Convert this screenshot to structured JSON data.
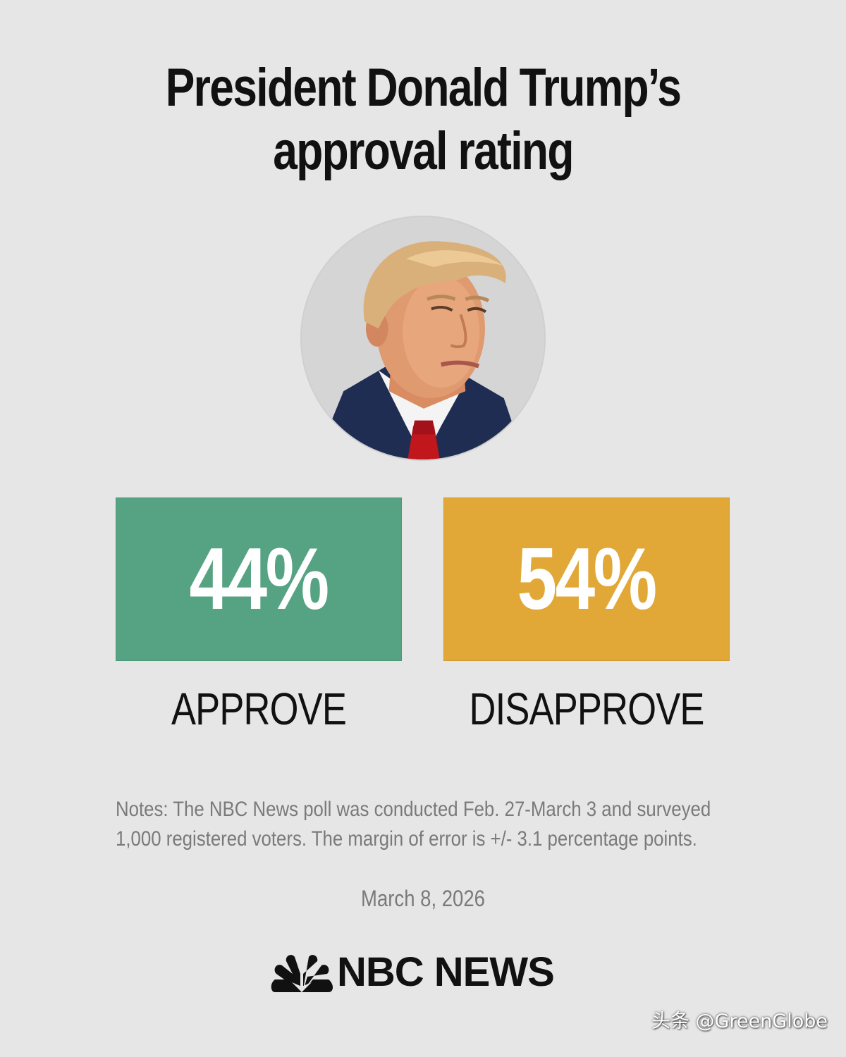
{
  "title": {
    "line1": "President Donald Trump’s",
    "line2": "approval rating"
  },
  "stats": {
    "approve": {
      "value": "44%",
      "label": "APPROVE",
      "color": "#56a383"
    },
    "disapprove": {
      "value": "54%",
      "label": "DISAPPROVE",
      "color": "#e2a837"
    }
  },
  "notes": {
    "line1": "Notes: The NBC News poll was conducted Feb. 27-March 3 and surveyed",
    "line2": "1,000 registered voters. The margin of error is +/- 3.1 percentage points."
  },
  "date": "March 8, 2026",
  "brand": {
    "name": "NBC NEWS",
    "icon": "peacock-icon"
  },
  "watermark": "头条 @GreenGlobe",
  "colors": {
    "background": "#e6e6e6",
    "text": "#111111",
    "muted": "#7a7a7a"
  }
}
